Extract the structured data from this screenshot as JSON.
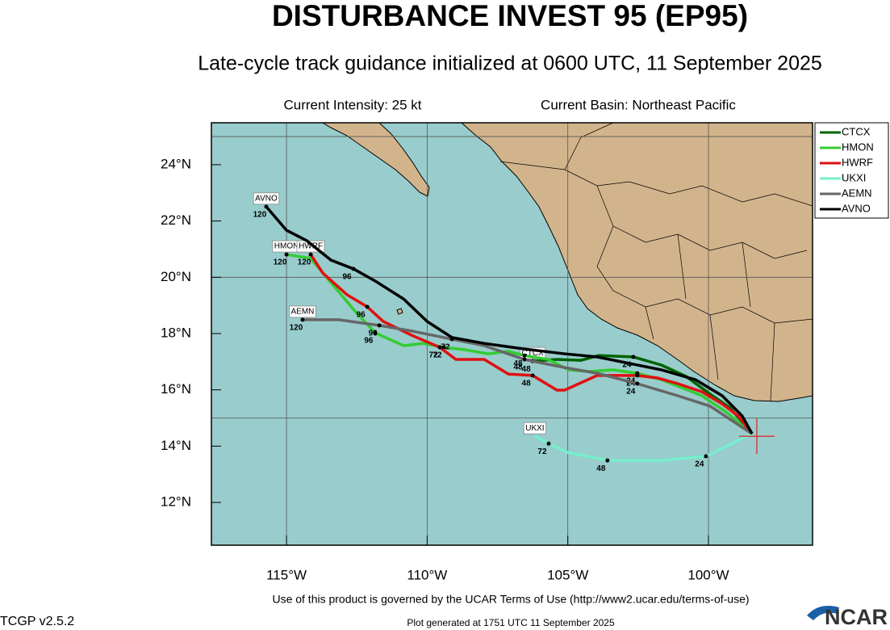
{
  "chart_data": {
    "type": "track_map",
    "title": "DISTURBANCE INVEST 95 (EP95)",
    "subtitle": "Late-cycle track guidance initialized at 0600 UTC, 11 September 2025",
    "intensity": "Current Intensity: 25 kt",
    "basin": "Current Basin: Northeast Pacific",
    "terms": "Use of this product is governed by the UCAR Terms of Use (http://www2.ucar.edu/terms-of-use)",
    "version": "TCGP v2.5.2",
    "generated": "Plot generated at 1751 UTC   11 September 2025",
    "logo": "NCAR",
    "xlim": [
      -117.67,
      -96.3
    ],
    "ylim": [
      10.48,
      25.49
    ],
    "xticks": [
      {
        "value": -115,
        "label": "115°W"
      },
      {
        "value": -110,
        "label": "110°W"
      },
      {
        "value": -105,
        "label": "105°W"
      },
      {
        "value": -100,
        "label": "100°W"
      }
    ],
    "yticks": [
      {
        "value": 12,
        "label": "12°N"
      },
      {
        "value": 14,
        "label": "14°N"
      },
      {
        "value": 16,
        "label": "16°N"
      },
      {
        "value": 18,
        "label": "18°N"
      },
      {
        "value": 20,
        "label": "20°N"
      },
      {
        "value": 22,
        "label": "22°N"
      },
      {
        "value": 24,
        "label": "24°N"
      }
    ],
    "grid_lon": [
      -115,
      -110,
      -105,
      -100
    ],
    "grid_lat": [
      15,
      20,
      25
    ],
    "current_position": {
      "x": -98.28,
      "y": 14.35,
      "color": "#e02020"
    },
    "legend": "outside-top-right",
    "series": [
      {
        "name": "CTCX",
        "color": "#006400",
        "x": [
          -98.45,
          -99.23,
          -99.94,
          -100.8,
          -101.67,
          -102.67,
          -103.9,
          -104.53,
          -105.39,
          -106.25
        ],
        "y": [
          14.44,
          15.36,
          15.85,
          16.48,
          16.88,
          17.17,
          17.22,
          17.05,
          17.08,
          17.02
        ],
        "hours": [
          24,
          48
        ],
        "hour_x": [
          -102.67,
          -106.25
        ],
        "hour_y": [
          17.17,
          17.02
        ]
      },
      {
        "name": "HMON",
        "color": "#33cc33",
        "x": [
          -98.45,
          -99.37,
          -100.23,
          -101.09,
          -101.67,
          -102.53,
          -103.39,
          -104.25,
          -104.97,
          -105.69,
          -106.54,
          -107.11,
          -107.83,
          -108.69,
          -109.41,
          -110.13,
          -110.84,
          -111.85,
          -112.57,
          -113.42,
          -114.14,
          -115
        ],
        "y": [
          14.44,
          15.21,
          15.79,
          16.13,
          16.36,
          16.59,
          16.71,
          16.65,
          16.71,
          17.08,
          17.22,
          17.37,
          17.28,
          17.43,
          17.51,
          17.65,
          17.57,
          18.03,
          18.8,
          19.81,
          20.67,
          20.81
        ],
        "hours": [
          24,
          48,
          72,
          96,
          120
        ],
        "hour_x": [
          -102.53,
          -106.54,
          -109.41,
          -111.85,
          -115
        ],
        "hour_y": [
          16.59,
          17.22,
          17.51,
          18.03,
          20.81
        ]
      },
      {
        "name": "HWRF",
        "color": "#e01010",
        "x": [
          -98.45,
          -98.94,
          -99.51,
          -100.23,
          -101.09,
          -101.81,
          -102.53,
          -103.96,
          -105.11,
          -105.39,
          -106.25,
          -107.11,
          -107.97,
          -108.98,
          -109.55,
          -110.55,
          -111.56,
          -112.13,
          -112.85,
          -113.71,
          -114.14
        ],
        "y": [
          14.44,
          15.07,
          15.5,
          15.93,
          16.22,
          16.42,
          16.51,
          16.51,
          15.99,
          15.99,
          16.51,
          16.56,
          17.08,
          17.08,
          17.51,
          17.94,
          18.43,
          18.95,
          19.38,
          20.15,
          20.81
        ],
        "hours": [
          24,
          48,
          72,
          96,
          120
        ],
        "hour_x": [
          -102.53,
          -106.25,
          -109.55,
          -112.13,
          -114.14
        ],
        "hour_y": [
          16.51,
          16.51,
          17.51,
          18.95,
          20.81
        ]
      },
      {
        "name": "UKXI",
        "color": "#77eecc",
        "x": [
          -98.45,
          -98.94,
          -100.09,
          -101.67,
          -103.59,
          -105.02,
          -105.68,
          -106.17
        ],
        "y": [
          14.44,
          14.21,
          13.64,
          13.49,
          13.49,
          13.78,
          14.09,
          14.35
        ],
        "hours": [
          24,
          48,
          72
        ],
        "hour_x": [
          -100.09,
          -103.59,
          -105.68
        ],
        "hour_y": [
          13.64,
          13.49,
          14.09
        ]
      },
      {
        "name": "AEMN",
        "color": "#666666",
        "x": [
          -98.45,
          -99.94,
          -101.09,
          -102.53,
          -103.96,
          -105.11,
          -106.54,
          -107.97,
          -109.12,
          -110.55,
          -111.7,
          -113.14,
          -114.43
        ],
        "y": [
          14.44,
          15.42,
          15.79,
          16.22,
          16.59,
          16.79,
          17.08,
          17.57,
          17.8,
          18.09,
          18.29,
          18.49,
          18.49
        ],
        "hours": [
          24,
          48,
          72,
          96,
          120
        ],
        "hour_x": [
          -102.53,
          -106.54,
          -109.12,
          -111.7,
          -114.43
        ],
        "hour_y": [
          16.22,
          17.08,
          17.8,
          18.29,
          18.49
        ]
      },
      {
        "name": "AVNO",
        "color": "#000000",
        "x": [
          -98.45,
          -98.8,
          -99.51,
          -100.46,
          -101.67,
          -102.81,
          -103.96,
          -105.11,
          -106.54,
          -107.97,
          -109.12,
          -110,
          -110.84,
          -111.85,
          -112.62,
          -113.42,
          -114.28,
          -115,
          -115.72
        ],
        "y": [
          14.44,
          15.07,
          15.79,
          16.36,
          16.71,
          16.94,
          17.17,
          17.28,
          17.45,
          17.65,
          17.86,
          18.43,
          19.23,
          19.87,
          20.3,
          20.61,
          21.3,
          21.67,
          22.51
        ],
        "hours": [
          96,
          120
        ],
        "hour_x": [
          -112.62,
          -115.72
        ],
        "hour_y": [
          20.3,
          22.51
        ]
      }
    ]
  }
}
